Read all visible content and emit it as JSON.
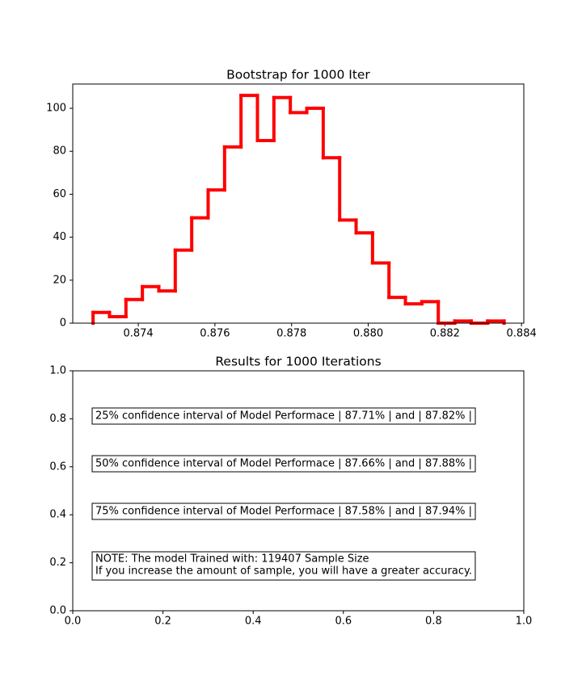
{
  "chart_data": [
    {
      "type": "histogram",
      "title": "Bootstrap for 1000 Iter",
      "bins": [
        0.87282,
        0.873249,
        0.873678,
        0.874107,
        0.874536,
        0.874965,
        0.875394,
        0.875823,
        0.876252,
        0.876681,
        0.87711,
        0.877539,
        0.877968,
        0.878397,
        0.878826,
        0.879255,
        0.879684,
        0.880113,
        0.880542,
        0.880971,
        0.8814,
        0.881829,
        0.882258,
        0.882687,
        0.883116,
        0.883545
      ],
      "values": [
        5,
        3,
        11,
        17,
        15,
        34,
        49,
        62,
        82,
        106,
        85,
        105,
        98,
        100,
        77,
        48,
        42,
        28,
        12,
        9,
        10,
        0,
        1,
        0,
        1
      ],
      "color": "#ff0000",
      "xlim": [
        0.87229,
        0.88406
      ],
      "ylim": [
        0,
        111.3
      ],
      "xticks": [
        0.874,
        0.876,
        0.878,
        {
          "value": 0.88,
          "label": "0.880"
        },
        0.882,
        0.884
      ],
      "yticks": [
        0,
        20,
        40,
        60,
        80,
        100
      ]
    },
    {
      "type": "text",
      "title": "Results for 1000 Iterations",
      "xlim": [
        0,
        1
      ],
      "ylim": [
        0,
        1
      ],
      "xticks": [
        {
          "value": 0,
          "label": "0.0"
        },
        0.2,
        0.4,
        0.6,
        0.8,
        {
          "value": 1,
          "label": "1.0"
        }
      ],
      "yticks": [
        {
          "value": 0,
          "label": "0.0"
        },
        0.2,
        0.4,
        0.6,
        0.8,
        {
          "value": 1,
          "label": "1.0"
        }
      ],
      "annotations": [
        {
          "text": "25% confidence interval of Model Performace | 87.71% | and | 87.82% |",
          "color": "#0000ff"
        },
        {
          "text": "50% confidence interval of Model Performace | 87.66% | and | 87.88% |",
          "color": "#0000ff"
        },
        {
          "text": "75% confidence interval of Model Performace | 87.58% | and | 87.94% |",
          "color": "#0000ff"
        }
      ],
      "note": {
        "lines": [
          "NOTE: The model Trained with: 119407 Sample Size",
          "If you increase the amount of sample, you will have a greater accuracy."
        ],
        "color": "#ff0000"
      }
    }
  ]
}
